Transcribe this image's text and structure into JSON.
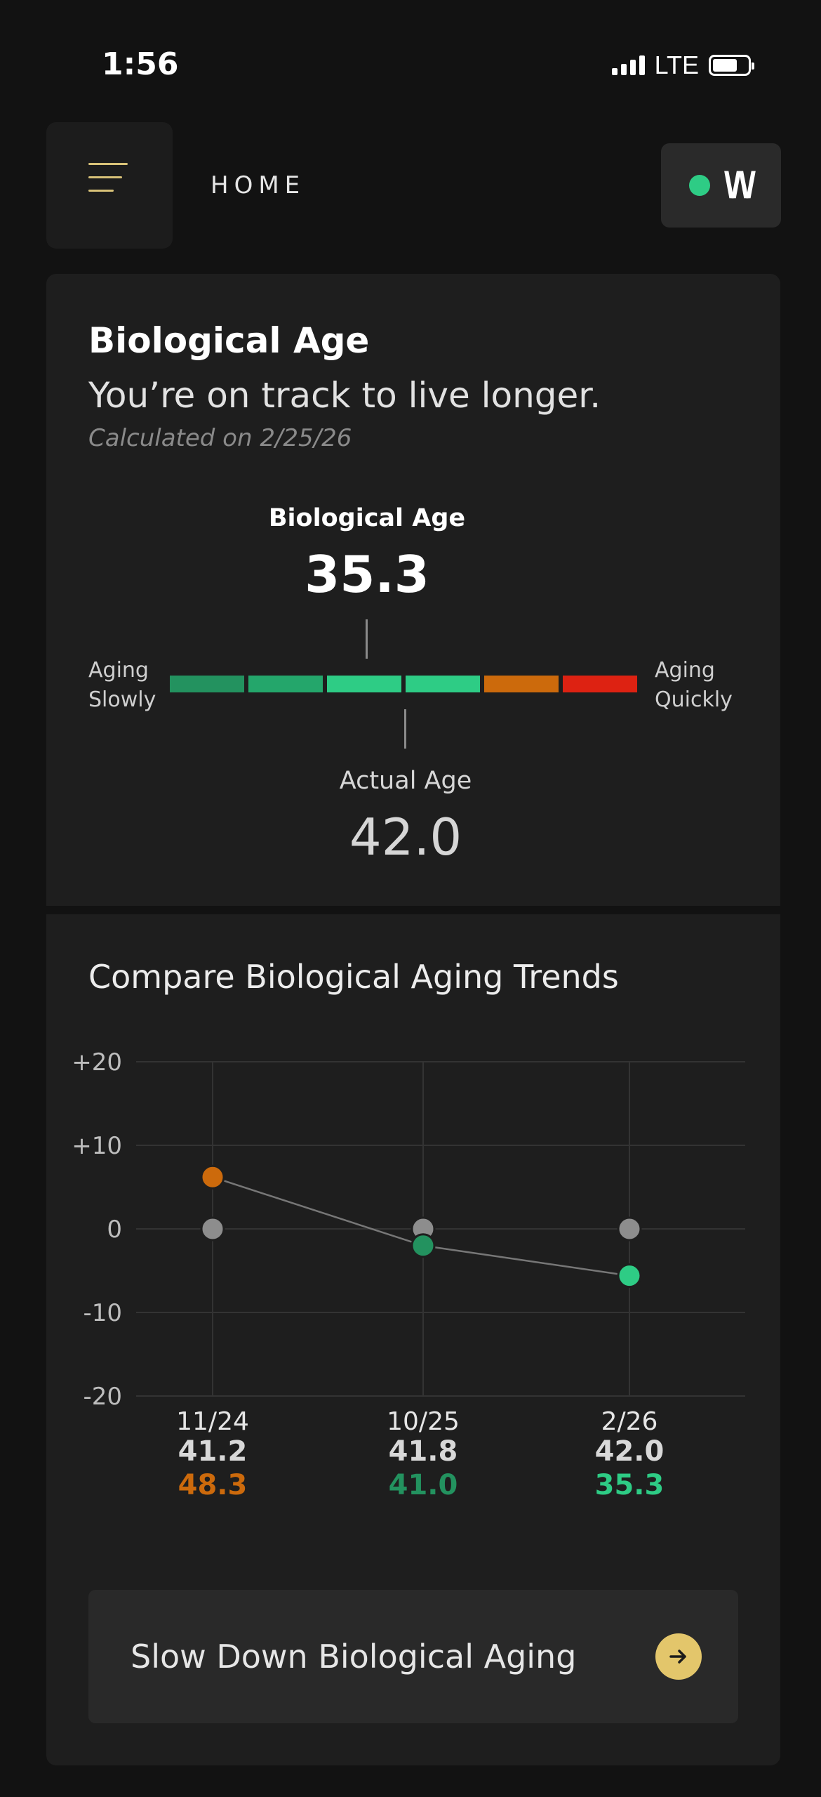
{
  "status_bar": {
    "time": "1:56",
    "network": "LTE",
    "battery_percent": 70
  },
  "header": {
    "title": "HOME",
    "logo_text": "\\/\\/"
  },
  "bio_card": {
    "title": "Biological Age",
    "subtitle": "You’re on track to live longer.",
    "calculated": "Calculated on 2/25/26",
    "gauge": {
      "bio_label": "Biological Age",
      "bio_value": "35.3",
      "left_label_1": "Aging",
      "left_label_2": "Slowly",
      "right_label_1": "Aging",
      "right_label_2": "Quickly",
      "segment_colors": [
        "#23925f",
        "#24a66b",
        "#2ecc85",
        "#2ecc85",
        "#cc6a0c",
        "#dd2212"
      ],
      "actual_label": "Actual Age",
      "actual_value": "42.0"
    }
  },
  "trends": {
    "title": "Compare Biological Aging Trends",
    "cta_label": "Slow Down Biological Aging"
  },
  "chart_data": {
    "type": "line",
    "x": [
      "11/24",
      "10/25",
      "2/26"
    ],
    "y_ticks": [
      "+20",
      "+10",
      "0",
      "-10",
      "-20"
    ],
    "ylim": [
      -20,
      20
    ],
    "series": [
      {
        "values": [
          0,
          0,
          0
        ],
        "color": "#8d8d8d"
      },
      {
        "values": [
          6.2,
          -2.0,
          -5.6
        ],
        "point_colors": [
          "#cc6a0c",
          "#23925f",
          "#2ecc85"
        ]
      }
    ],
    "actual_ages": [
      "41.2",
      "41.8",
      "42.0"
    ],
    "biological_ages": [
      "48.3",
      "41.0",
      "35.3"
    ],
    "biological_colors": [
      "#cc6a0c",
      "#23925f",
      "#2ecc85"
    ],
    "grid": true
  }
}
